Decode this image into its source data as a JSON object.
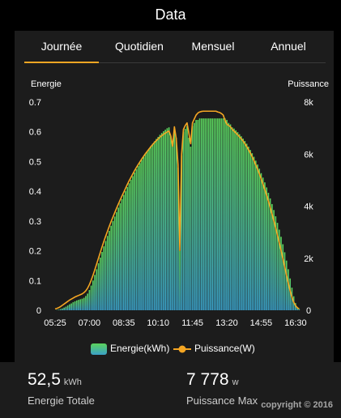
{
  "header": {
    "title": "Data"
  },
  "tabs": [
    {
      "label": "Journée",
      "active": true
    },
    {
      "label": "Quotidien",
      "active": false
    },
    {
      "label": "Mensuel",
      "active": false
    },
    {
      "label": "Annuel",
      "active": false
    }
  ],
  "colors": {
    "accent": "#f5a623",
    "bar_top": "#5bd35b",
    "bar_bottom": "#3aa0c8",
    "line": "#f5a623",
    "panel": "#1c1c1c"
  },
  "chart_data": {
    "type": "bar",
    "ylabel_left": "Energie",
    "ylabel_right": "Puissance",
    "y_left_ticks": [
      "0",
      "0.1",
      "0.2",
      "0.3",
      "0.4",
      "0.5",
      "0.6",
      "0.7"
    ],
    "y_right_ticks": [
      "0",
      "2k",
      "4k",
      "6k",
      "8k"
    ],
    "ylim_left": [
      0,
      0.7
    ],
    "ylim_right": [
      0,
      8000
    ],
    "x_ticks": [
      "05:25",
      "07:00",
      "08:35",
      "10:10",
      "11:45",
      "13:20",
      "14:55",
      "16:30"
    ],
    "x_start_min": 325,
    "x_interval_min": 5,
    "series": [
      {
        "name": "Energie(kWh)",
        "axis": "left",
        "kind": "bar",
        "values": [
          0.0,
          0.001,
          0.002,
          0.004,
          0.006,
          0.009,
          0.012,
          0.016,
          0.02,
          0.023,
          0.027,
          0.03,
          0.033,
          0.035,
          0.037,
          0.039,
          0.042,
          0.048,
          0.056,
          0.068,
          0.083,
          0.1,
          0.119,
          0.138,
          0.158,
          0.177,
          0.196,
          0.215,
          0.233,
          0.25,
          0.267,
          0.284,
          0.3,
          0.315,
          0.33,
          0.345,
          0.36,
          0.374,
          0.388,
          0.401,
          0.414,
          0.427,
          0.439,
          0.451,
          0.463,
          0.474,
          0.485,
          0.495,
          0.505,
          0.515,
          0.525,
          0.534,
          0.543,
          0.552,
          0.56,
          0.568,
          0.576,
          0.583,
          0.59,
          0.596,
          0.602,
          0.607,
          0.612,
          0.615,
          0.585,
          0.56,
          0.61,
          0.58,
          0.48,
          0.2,
          0.52,
          0.6,
          0.61,
          0.62,
          0.58,
          0.55,
          0.62,
          0.63,
          0.64,
          0.64,
          0.645,
          0.645,
          0.645,
          0.645,
          0.645,
          0.645,
          0.645,
          0.645,
          0.645,
          0.645,
          0.645,
          0.645,
          0.645,
          0.645,
          0.645,
          0.64,
          0.63,
          0.625,
          0.615,
          0.611,
          0.605,
          0.599,
          0.592,
          0.585,
          0.577,
          0.569,
          0.56,
          0.55,
          0.539,
          0.528,
          0.516,
          0.503,
          0.49,
          0.476,
          0.461,
          0.446,
          0.43,
          0.413,
          0.395,
          0.376,
          0.357,
          0.337,
          0.316,
          0.294,
          0.271,
          0.247,
          0.222,
          0.195,
          0.167,
          0.138,
          0.107,
          0.076,
          0.047,
          0.024,
          0.01,
          0.004
        ]
      },
      {
        "name": "Puissance(W)",
        "axis": "right",
        "kind": "line",
        "values": [
          50,
          70,
          100,
          140,
          190,
          240,
          290,
          340,
          390,
          430,
          470,
          510,
          540,
          570,
          600,
          630,
          680,
          750,
          850,
          990,
          1160,
          1350,
          1560,
          1780,
          2000,
          2220,
          2440,
          2650,
          2850,
          3040,
          3230,
          3410,
          3580,
          3750,
          3920,
          4080,
          4240,
          4390,
          4540,
          4690,
          4840,
          4980,
          5110,
          5240,
          5370,
          5490,
          5600,
          5710,
          5820,
          5920,
          6020,
          6110,
          6200,
          6290,
          6370,
          6450,
          6520,
          6590,
          6650,
          6710,
          6760,
          6810,
          6850,
          6890,
          6700,
          6300,
          7050,
          6600,
          5600,
          2300,
          6000,
          6950,
          7100,
          7200,
          6800,
          6400,
          7200,
          7350,
          7500,
          7580,
          7620,
          7640,
          7650,
          7650,
          7650,
          7650,
          7650,
          7650,
          7650,
          7650,
          7620,
          7600,
          7560,
          7500,
          7300,
          7150,
          7100,
          7050,
          6950,
          6880,
          6810,
          6740,
          6670,
          6590,
          6500,
          6400,
          6290,
          6170,
          6040,
          5900,
          5750,
          5590,
          5420,
          5240,
          5050,
          4850,
          4640,
          4420,
          4190,
          3950,
          3700,
          3440,
          3170,
          2890,
          2600,
          2300,
          1990,
          1670,
          1350,
          1040,
          750,
          500,
          310,
          180,
          100,
          50
        ]
      }
    ],
    "legend_position": "bottom-center",
    "grid": false
  },
  "stats": {
    "energy_value": "52,5",
    "energy_unit": "kWh",
    "energy_label": "Energie Totale",
    "power_value": "7 778",
    "power_unit": "w",
    "power_label": "Puissance Max"
  },
  "watermark": "copyright © 2016"
}
